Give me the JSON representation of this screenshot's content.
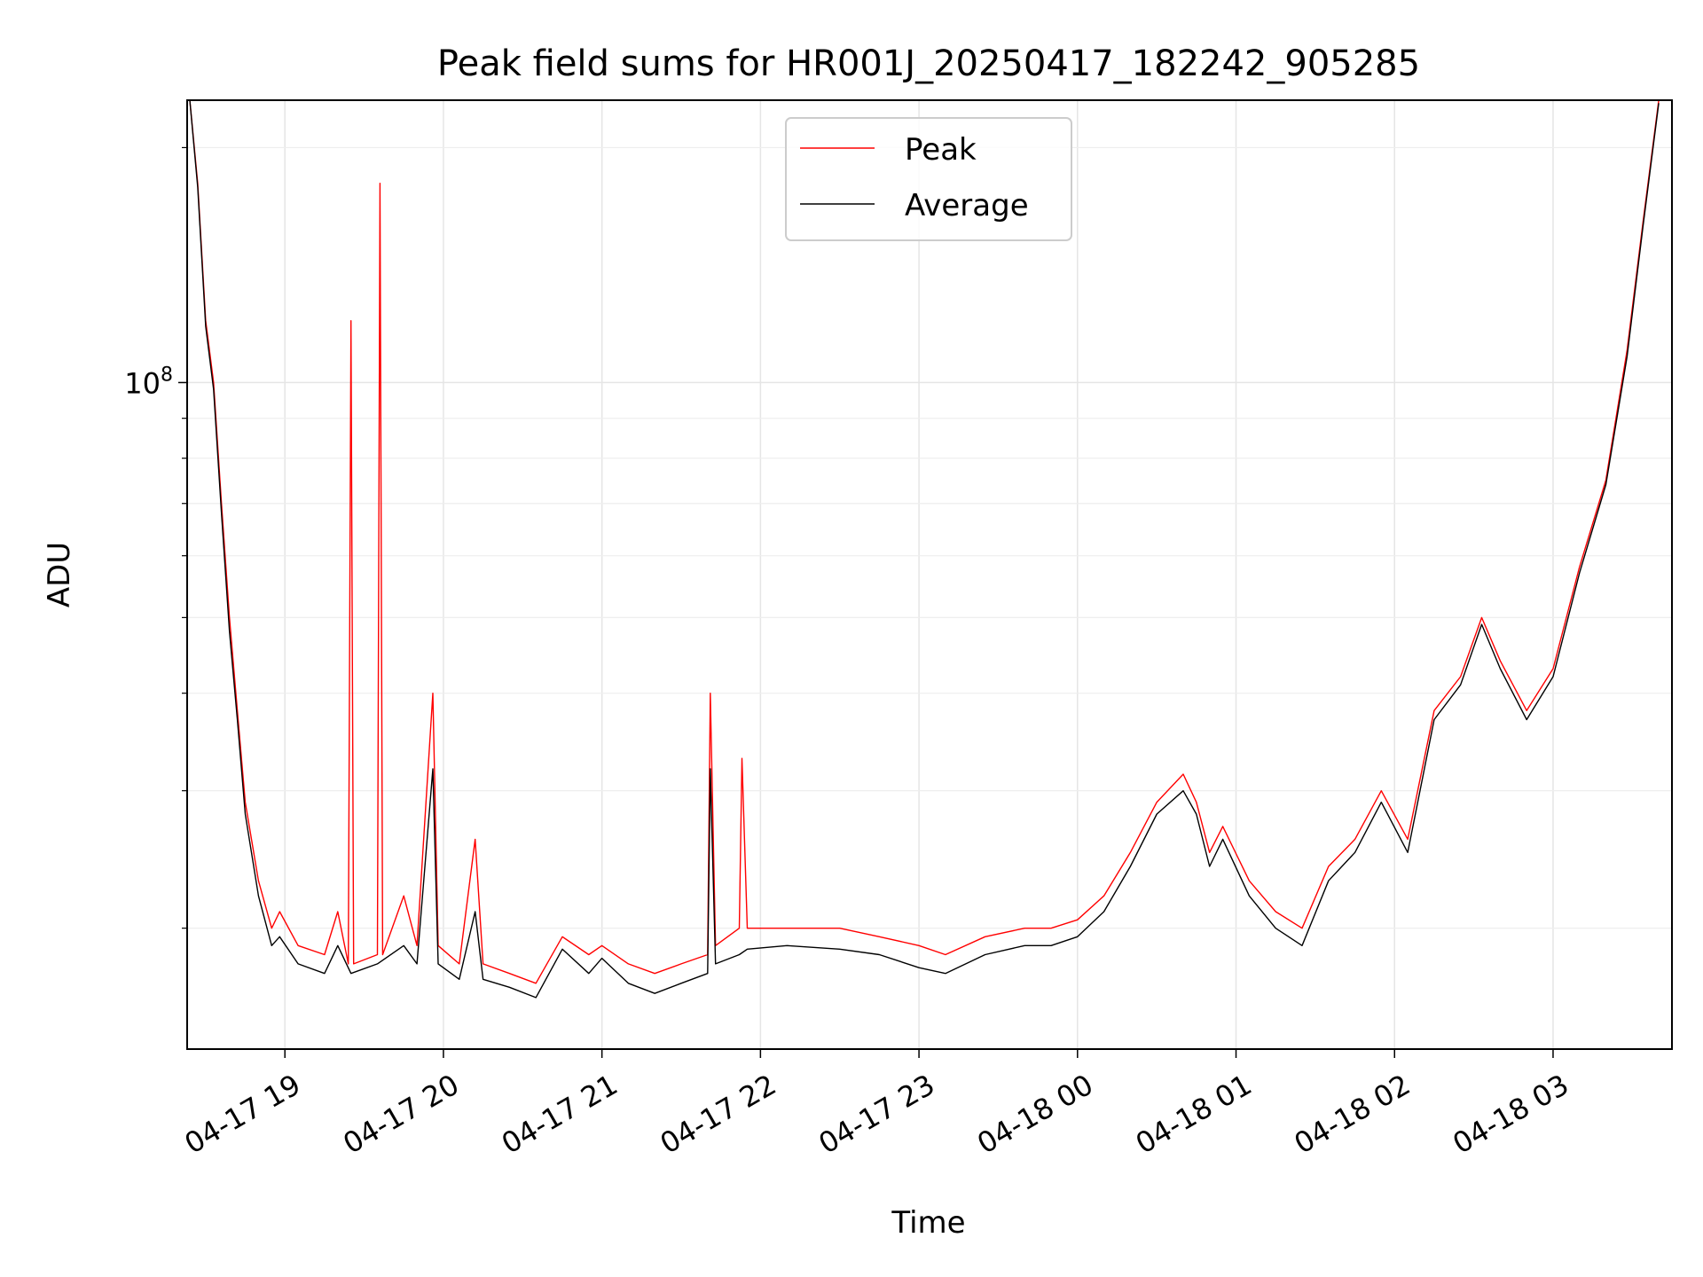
{
  "chart_data": {
    "type": "line",
    "title": "Peak field sums for HR001J_20250417_182242_905285",
    "xlabel": "Time",
    "ylabel": "ADU",
    "x_scale": "time",
    "y_scale": "log",
    "xlim": [
      "2025-04-17 18:23",
      "2025-04-18 03:45"
    ],
    "ylim": [
      14000000,
      230000000
    ],
    "x_ticks": [
      {
        "value": "2025-04-17 19:00",
        "label": "04-17 19"
      },
      {
        "value": "2025-04-17 20:00",
        "label": "04-17 20"
      },
      {
        "value": "2025-04-17 21:00",
        "label": "04-17 21"
      },
      {
        "value": "2025-04-17 22:00",
        "label": "04-17 22"
      },
      {
        "value": "2025-04-17 23:00",
        "label": "04-17 23"
      },
      {
        "value": "2025-04-18 00:00",
        "label": "04-18 00"
      },
      {
        "value": "2025-04-18 01:00",
        "label": "04-18 01"
      },
      {
        "value": "2025-04-18 02:00",
        "label": "04-18 02"
      },
      {
        "value": "2025-04-18 03:00",
        "label": "04-18 03"
      }
    ],
    "y_ticks": [
      {
        "value": 100000000,
        "base": "10",
        "exp": "8"
      }
    ],
    "grid": true,
    "legend_position": "top-center",
    "series": [
      {
        "name": "Peak",
        "color": "#ff0000",
        "points": [
          [
            "2025-04-17 18:24",
            230000000
          ],
          [
            "2025-04-17 18:27",
            180000000
          ],
          [
            "2025-04-17 18:30",
            120000000
          ],
          [
            "2025-04-17 18:33",
            100000000
          ],
          [
            "2025-04-17 18:36",
            70000000
          ],
          [
            "2025-04-17 18:39",
            50000000
          ],
          [
            "2025-04-17 18:42",
            38000000
          ],
          [
            "2025-04-17 18:45",
            29000000
          ],
          [
            "2025-04-17 18:50",
            23000000
          ],
          [
            "2025-04-17 18:55",
            20000000
          ],
          [
            "2025-04-17 18:58",
            21000000
          ],
          [
            "2025-04-17 19:05",
            19000000
          ],
          [
            "2025-04-17 19:15",
            18500000
          ],
          [
            "2025-04-17 19:20",
            21000000
          ],
          [
            "2025-04-17 19:24",
            18000000
          ],
          [
            "2025-04-17 19:25",
            120000000
          ],
          [
            "2025-04-17 19:26",
            18000000
          ],
          [
            "2025-04-17 19:35",
            18500000
          ],
          [
            "2025-04-17 19:36",
            180000000
          ],
          [
            "2025-04-17 19:37",
            18500000
          ],
          [
            "2025-04-17 19:45",
            22000000
          ],
          [
            "2025-04-17 19:50",
            19000000
          ],
          [
            "2025-04-17 19:56",
            40000000
          ],
          [
            "2025-04-17 19:58",
            19000000
          ],
          [
            "2025-04-17 20:06",
            18000000
          ],
          [
            "2025-04-17 20:12",
            26000000
          ],
          [
            "2025-04-17 20:15",
            18000000
          ],
          [
            "2025-04-17 20:25",
            17500000
          ],
          [
            "2025-04-17 20:35",
            17000000
          ],
          [
            "2025-04-17 20:45",
            19500000
          ],
          [
            "2025-04-17 20:55",
            18500000
          ],
          [
            "2025-04-17 21:00",
            19000000
          ],
          [
            "2025-04-17 21:10",
            18000000
          ],
          [
            "2025-04-17 21:20",
            17500000
          ],
          [
            "2025-04-17 21:30",
            18000000
          ],
          [
            "2025-04-17 21:40",
            18500000
          ],
          [
            "2025-04-17 21:41",
            40000000
          ],
          [
            "2025-04-17 21:43",
            19000000
          ],
          [
            "2025-04-17 21:52",
            20000000
          ],
          [
            "2025-04-17 21:53",
            33000000
          ],
          [
            "2025-04-17 21:55",
            20000000
          ],
          [
            "2025-04-17 22:10",
            20000000
          ],
          [
            "2025-04-17 22:30",
            20000000
          ],
          [
            "2025-04-17 22:45",
            19500000
          ],
          [
            "2025-04-17 23:00",
            19000000
          ],
          [
            "2025-04-17 23:10",
            18500000
          ],
          [
            "2025-04-17 23:25",
            19500000
          ],
          [
            "2025-04-17 23:40",
            20000000
          ],
          [
            "2025-04-17 23:50",
            20000000
          ],
          [
            "2025-04-18 00:00",
            20500000
          ],
          [
            "2025-04-18 00:10",
            22000000
          ],
          [
            "2025-04-18 00:20",
            25000000
          ],
          [
            "2025-04-18 00:30",
            29000000
          ],
          [
            "2025-04-18 00:40",
            31500000
          ],
          [
            "2025-04-18 00:45",
            29000000
          ],
          [
            "2025-04-18 00:50",
            25000000
          ],
          [
            "2025-04-18 00:55",
            27000000
          ],
          [
            "2025-04-18 01:05",
            23000000
          ],
          [
            "2025-04-18 01:15",
            21000000
          ],
          [
            "2025-04-18 01:25",
            20000000
          ],
          [
            "2025-04-18 01:35",
            24000000
          ],
          [
            "2025-04-18 01:45",
            26000000
          ],
          [
            "2025-04-18 01:55",
            30000000
          ],
          [
            "2025-04-18 02:05",
            26000000
          ],
          [
            "2025-04-18 02:15",
            38000000
          ],
          [
            "2025-04-18 02:25",
            42000000
          ],
          [
            "2025-04-18 02:33",
            50000000
          ],
          [
            "2025-04-18 02:40",
            44000000
          ],
          [
            "2025-04-18 02:50",
            38000000
          ],
          [
            "2025-04-18 03:00",
            43000000
          ],
          [
            "2025-04-18 03:10",
            58000000
          ],
          [
            "2025-04-18 03:20",
            75000000
          ],
          [
            "2025-04-18 03:28",
            110000000
          ],
          [
            "2025-04-18 03:34",
            160000000
          ],
          [
            "2025-04-18 03:40",
            230000000
          ]
        ]
      },
      {
        "name": "Average",
        "color": "#000000",
        "points": [
          [
            "2025-04-17 18:24",
            230000000
          ],
          [
            "2025-04-17 18:27",
            178000000
          ],
          [
            "2025-04-17 18:30",
            118000000
          ],
          [
            "2025-04-17 18:33",
            98000000
          ],
          [
            "2025-04-17 18:36",
            68000000
          ],
          [
            "2025-04-17 18:39",
            48000000
          ],
          [
            "2025-04-17 18:42",
            37000000
          ],
          [
            "2025-04-17 18:45",
            28000000
          ],
          [
            "2025-04-17 18:50",
            22000000
          ],
          [
            "2025-04-17 18:55",
            19000000
          ],
          [
            "2025-04-17 18:58",
            19500000
          ],
          [
            "2025-04-17 19:05",
            18000000
          ],
          [
            "2025-04-17 19:15",
            17500000
          ],
          [
            "2025-04-17 19:20",
            19000000
          ],
          [
            "2025-04-17 19:25",
            17500000
          ],
          [
            "2025-04-17 19:35",
            18000000
          ],
          [
            "2025-04-17 19:45",
            19000000
          ],
          [
            "2025-04-17 19:50",
            18000000
          ],
          [
            "2025-04-17 19:56",
            32000000
          ],
          [
            "2025-04-17 19:58",
            18000000
          ],
          [
            "2025-04-17 20:06",
            17200000
          ],
          [
            "2025-04-17 20:12",
            21000000
          ],
          [
            "2025-04-17 20:15",
            17200000
          ],
          [
            "2025-04-17 20:25",
            16800000
          ],
          [
            "2025-04-17 20:35",
            16300000
          ],
          [
            "2025-04-17 20:45",
            18800000
          ],
          [
            "2025-04-17 20:55",
            17500000
          ],
          [
            "2025-04-17 21:00",
            18300000
          ],
          [
            "2025-04-17 21:10",
            17000000
          ],
          [
            "2025-04-17 21:20",
            16500000
          ],
          [
            "2025-04-17 21:30",
            17000000
          ],
          [
            "2025-04-17 21:40",
            17500000
          ],
          [
            "2025-04-17 21:41",
            32000000
          ],
          [
            "2025-04-17 21:43",
            18000000
          ],
          [
            "2025-04-17 21:52",
            18500000
          ],
          [
            "2025-04-17 21:55",
            18800000
          ],
          [
            "2025-04-17 22:10",
            19000000
          ],
          [
            "2025-04-17 22:30",
            18800000
          ],
          [
            "2025-04-17 22:45",
            18500000
          ],
          [
            "2025-04-17 23:00",
            17800000
          ],
          [
            "2025-04-17 23:10",
            17500000
          ],
          [
            "2025-04-17 23:25",
            18500000
          ],
          [
            "2025-04-17 23:40",
            19000000
          ],
          [
            "2025-04-17 23:50",
            19000000
          ],
          [
            "2025-04-18 00:00",
            19500000
          ],
          [
            "2025-04-18 00:10",
            21000000
          ],
          [
            "2025-04-18 00:20",
            24000000
          ],
          [
            "2025-04-18 00:30",
            28000000
          ],
          [
            "2025-04-18 00:40",
            30000000
          ],
          [
            "2025-04-18 00:45",
            28000000
          ],
          [
            "2025-04-18 00:50",
            24000000
          ],
          [
            "2025-04-18 00:55",
            26000000
          ],
          [
            "2025-04-18 01:05",
            22000000
          ],
          [
            "2025-04-18 01:15",
            20000000
          ],
          [
            "2025-04-18 01:25",
            19000000
          ],
          [
            "2025-04-18 01:35",
            23000000
          ],
          [
            "2025-04-18 01:45",
            25000000
          ],
          [
            "2025-04-18 01:55",
            29000000
          ],
          [
            "2025-04-18 02:05",
            25000000
          ],
          [
            "2025-04-18 02:15",
            37000000
          ],
          [
            "2025-04-18 02:25",
            41000000
          ],
          [
            "2025-04-18 02:33",
            49000000
          ],
          [
            "2025-04-18 02:40",
            43000000
          ],
          [
            "2025-04-18 02:50",
            37000000
          ],
          [
            "2025-04-18 03:00",
            42000000
          ],
          [
            "2025-04-18 03:10",
            57000000
          ],
          [
            "2025-04-18 03:20",
            74000000
          ],
          [
            "2025-04-18 03:28",
            108000000
          ],
          [
            "2025-04-18 03:34",
            158000000
          ],
          [
            "2025-04-18 03:40",
            228000000
          ]
        ]
      }
    ]
  }
}
